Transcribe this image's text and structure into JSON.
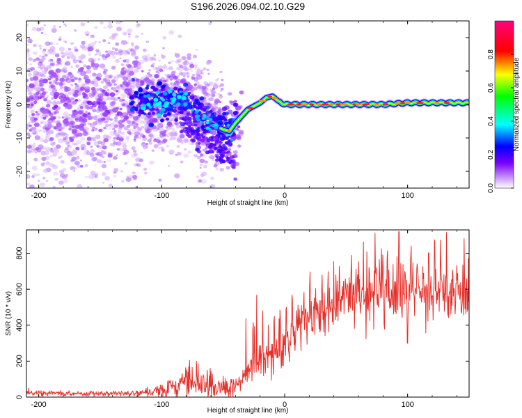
{
  "chart_data": [
    {
      "id": "spectrogram",
      "type": "heatmap",
      "title": "S196.2026.094.02.10.G29",
      "xlabel": "Height of straight line (km)",
      "ylabel": "Frequency (Hz)",
      "xlim": [
        -210,
        150
      ],
      "ylim": [
        -25,
        25
      ],
      "xticks": [
        -200,
        -100,
        0,
        100
      ],
      "yticks": [
        -20,
        -10,
        0,
        10,
        20
      ],
      "colorbar": {
        "label": "Normalized spectral amplitude",
        "range": [
          0,
          1
        ],
        "ticks": [
          0.0,
          0.2,
          0.4,
          0.6,
          0.8
        ],
        "tick_labels": [
          "0.0",
          "0.2",
          "0.4",
          "0.6",
          "0.8"
        ]
      },
      "ridge": {
        "x": [
          -120,
          -100,
          -90,
          -80,
          -70,
          -60,
          -50,
          -45,
          -40,
          -30,
          -20,
          -15,
          -10,
          -5,
          0,
          10,
          20,
          40,
          60,
          80,
          100,
          120,
          135,
          150
        ],
        "y": [
          1.5,
          0.5,
          1.5,
          1.0,
          -3.0,
          -5.5,
          -7.5,
          -8.0,
          -5.5,
          -1.5,
          0.5,
          2.0,
          2.5,
          1.0,
          0.0,
          0.0,
          0.0,
          0.0,
          0.0,
          0.0,
          0.5,
          0.5,
          0.5,
          0.5
        ]
      }
    },
    {
      "id": "snr",
      "type": "line",
      "xlabel": "Height of straight line (km)",
      "ylabel": "SNR (10 * v/v)",
      "xlim": [
        -210,
        150
      ],
      "ylim": [
        0,
        930
      ],
      "xticks": [
        -200,
        -100,
        0,
        100
      ],
      "yticks": [
        0,
        200,
        400,
        600,
        800
      ],
      "series": [
        {
          "name": "SNR",
          "color": "#e8302a",
          "x": [
            -210,
            -180,
            -150,
            -120,
            -100,
            -90,
            -80,
            -70,
            -60,
            -50,
            -40,
            -30,
            -20,
            -10,
            0,
            10,
            20,
            30,
            40,
            60,
            80,
            100,
            120,
            150
          ],
          "y": [
            25,
            20,
            20,
            25,
            40,
            60,
            85,
            80,
            70,
            50,
            60,
            150,
            200,
            240,
            310,
            380,
            450,
            500,
            540,
            590,
            600,
            600,
            595,
            600
          ]
        }
      ]
    }
  ]
}
